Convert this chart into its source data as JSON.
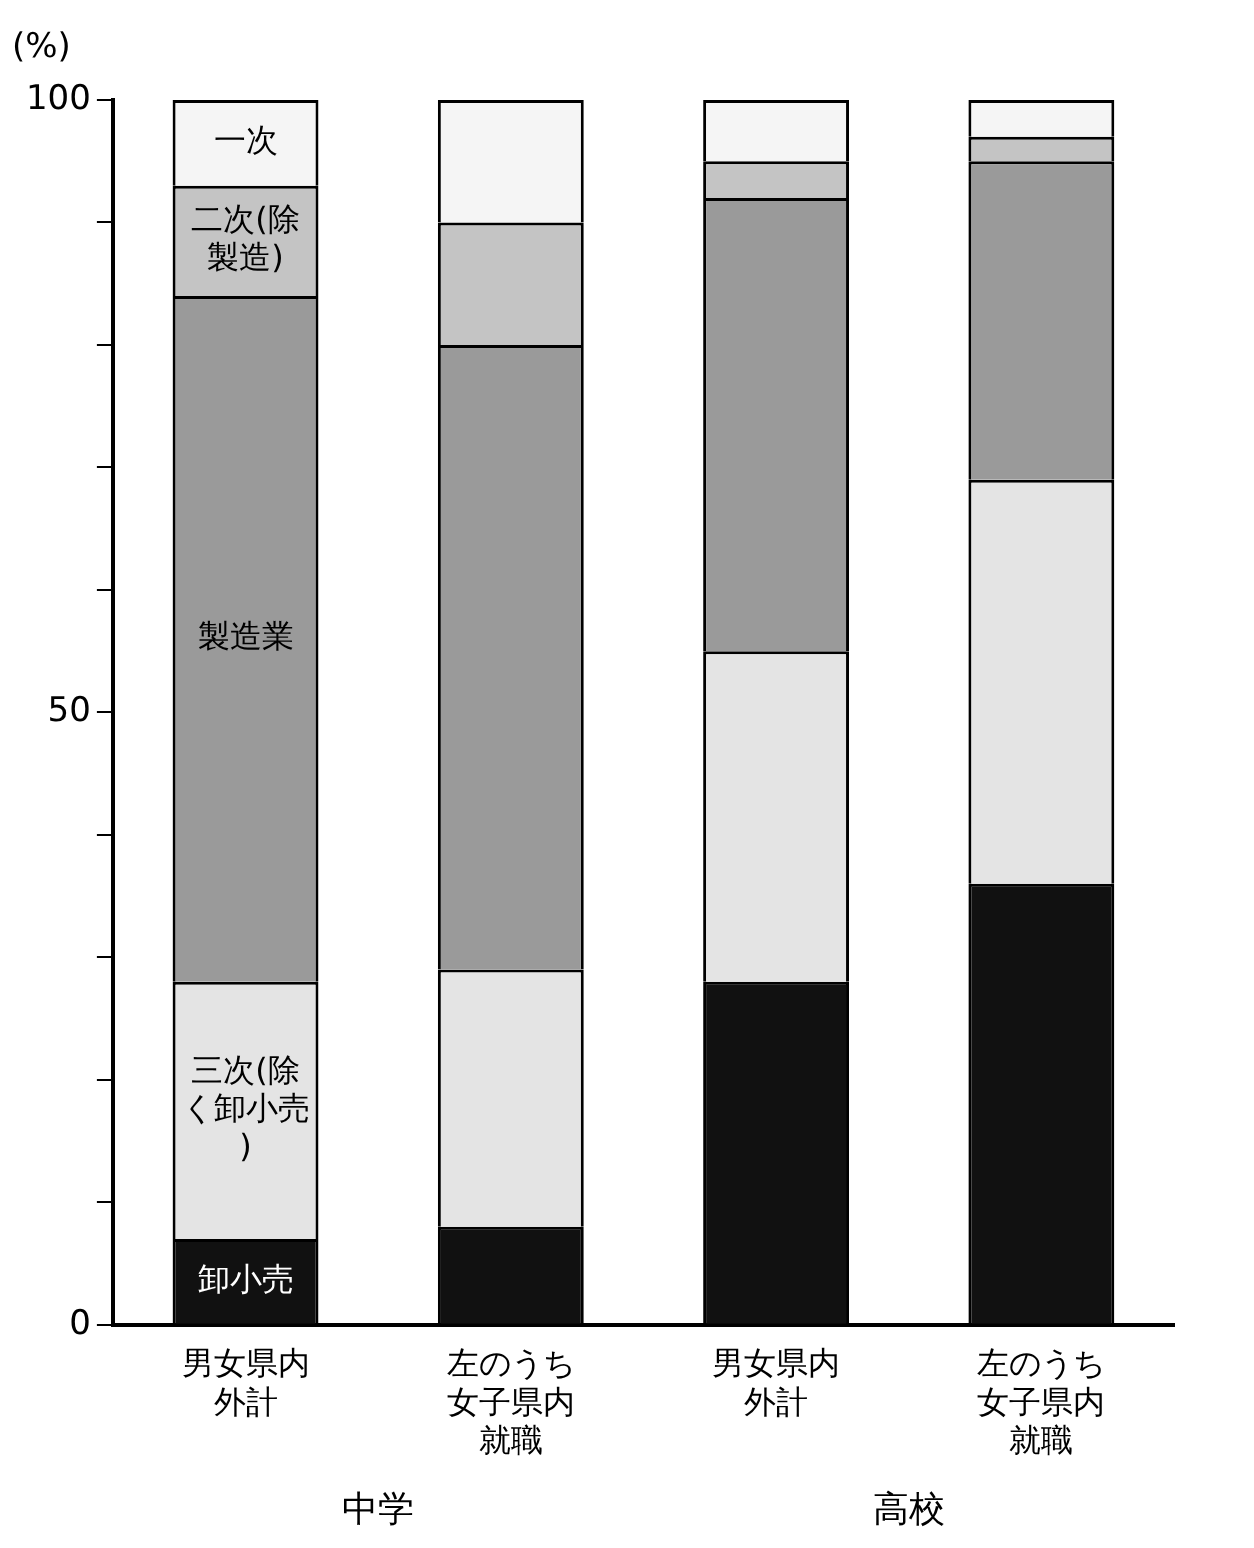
{
  "chart_data": {
    "type": "bar",
    "stacked": true,
    "ylabel": "(%)",
    "categories": [
      "男女県内外計",
      "左のうち女子県内就職",
      "男女県内外計",
      "左のうち女子県内就職"
    ],
    "series": [
      {
        "name": "卸小売",
        "color": "#111111",
        "values": [
          7,
          8,
          28,
          36
        ]
      },
      {
        "name": "三次(除く卸小売)",
        "color": "#e4e4e4",
        "values": [
          21,
          21,
          27,
          33
        ]
      },
      {
        "name": "製造業",
        "color": "#9a9a9a",
        "values": [
          56,
          51,
          37,
          26
        ]
      },
      {
        "name": "二次(除製造)",
        "color": "#c4c4c4",
        "values": [
          9,
          10,
          3,
          2
        ]
      },
      {
        "name": "一次",
        "color": "#f5f5f5",
        "values": [
          7,
          10,
          5,
          3
        ]
      }
    ],
    "ylim": [
      0,
      100
    ],
    "yticks": [
      0,
      {
        "value": 10,
        "label": null
      },
      {
        "value": 20,
        "label": null
      },
      {
        "value": 30,
        "label": null
      },
      {
        "value": 40,
        "label": null
      },
      50,
      {
        "value": 60,
        "label": null
      },
      {
        "value": 70,
        "label": null
      },
      {
        "value": 80,
        "label": null
      },
      {
        "value": 90,
        "label": null
      },
      100
    ],
    "grid": false,
    "legend": false,
    "annotations": [
      "中学",
      "高校"
    ]
  }
}
